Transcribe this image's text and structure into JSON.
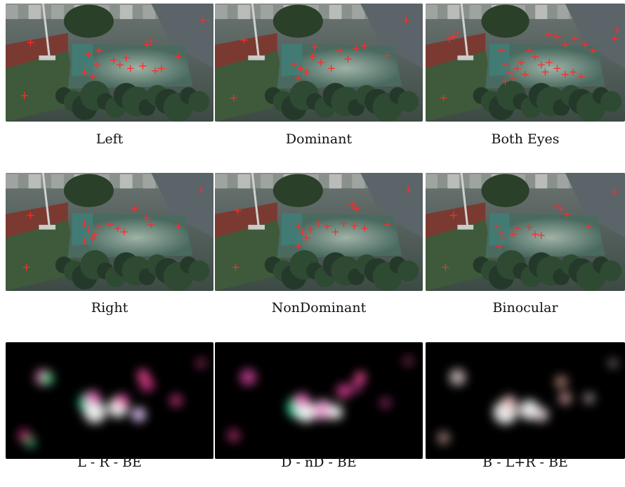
{
  "figure": {
    "panels": [
      {
        "caption": "Left",
        "kind": "photo",
        "fixations": [
          [
            0.12,
            0.33
          ],
          [
            0.09,
            0.78
          ],
          [
            0.4,
            0.43
          ],
          [
            0.45,
            0.4
          ],
          [
            0.52,
            0.48
          ],
          [
            0.55,
            0.52
          ],
          [
            0.58,
            0.46
          ],
          [
            0.6,
            0.55
          ],
          [
            0.66,
            0.53
          ],
          [
            0.68,
            0.35
          ],
          [
            0.7,
            0.32
          ],
          [
            0.75,
            0.55
          ],
          [
            0.83,
            0.45
          ],
          [
            0.95,
            0.14
          ],
          [
            0.38,
            0.58
          ],
          [
            0.42,
            0.62
          ],
          [
            0.44,
            0.52
          ],
          [
            0.72,
            0.57
          ]
        ]
      },
      {
        "caption": "Dominant",
        "kind": "photo",
        "fixations": [
          [
            0.14,
            0.31
          ],
          [
            0.09,
            0.8
          ],
          [
            0.38,
            0.52
          ],
          [
            0.41,
            0.55
          ],
          [
            0.44,
            0.58
          ],
          [
            0.47,
            0.45
          ],
          [
            0.51,
            0.5
          ],
          [
            0.56,
            0.55
          ],
          [
            0.6,
            0.4
          ],
          [
            0.64,
            0.47
          ],
          [
            0.68,
            0.38
          ],
          [
            0.72,
            0.36
          ],
          [
            0.83,
            0.44
          ],
          [
            0.92,
            0.14
          ],
          [
            0.48,
            0.37
          ],
          [
            0.4,
            0.63
          ]
        ]
      },
      {
        "caption": "Both Eyes",
        "kind": "photo",
        "fixations": [
          [
            0.14,
            0.28
          ],
          [
            0.16,
            0.24
          ],
          [
            0.12,
            0.3
          ],
          [
            0.09,
            0.8
          ],
          [
            0.38,
            0.4
          ],
          [
            0.4,
            0.52
          ],
          [
            0.42,
            0.58
          ],
          [
            0.44,
            0.63
          ],
          [
            0.46,
            0.55
          ],
          [
            0.48,
            0.5
          ],
          [
            0.5,
            0.6
          ],
          [
            0.55,
            0.45
          ],
          [
            0.58,
            0.52
          ],
          [
            0.6,
            0.58
          ],
          [
            0.62,
            0.5
          ],
          [
            0.66,
            0.55
          ],
          [
            0.7,
            0.6
          ],
          [
            0.74,
            0.58
          ],
          [
            0.78,
            0.62
          ],
          [
            0.62,
            0.26
          ],
          [
            0.66,
            0.28
          ],
          [
            0.7,
            0.35
          ],
          [
            0.75,
            0.3
          ],
          [
            0.8,
            0.35
          ],
          [
            0.84,
            0.4
          ],
          [
            0.95,
            0.3
          ],
          [
            0.96,
            0.22
          ],
          [
            0.4,
            0.66
          ],
          [
            0.52,
            0.4
          ]
        ]
      },
      {
        "caption": "Right",
        "kind": "photo",
        "fixations": [
          [
            0.12,
            0.36
          ],
          [
            0.1,
            0.8
          ],
          [
            0.38,
            0.43
          ],
          [
            0.4,
            0.48
          ],
          [
            0.43,
            0.52
          ],
          [
            0.45,
            0.46
          ],
          [
            0.38,
            0.58
          ],
          [
            0.5,
            0.44
          ],
          [
            0.54,
            0.47
          ],
          [
            0.57,
            0.5
          ],
          [
            0.62,
            0.3
          ],
          [
            0.68,
            0.38
          ],
          [
            0.7,
            0.44
          ],
          [
            0.83,
            0.45
          ],
          [
            0.94,
            0.14
          ],
          [
            0.42,
            0.56
          ]
        ]
      },
      {
        "caption": "NonDominant",
        "kind": "photo",
        "fixations": [
          [
            0.11,
            0.32
          ],
          [
            0.1,
            0.8
          ],
          [
            0.4,
            0.45
          ],
          [
            0.42,
            0.5
          ],
          [
            0.44,
            0.55
          ],
          [
            0.4,
            0.62
          ],
          [
            0.5,
            0.43
          ],
          [
            0.54,
            0.45
          ],
          [
            0.58,
            0.5
          ],
          [
            0.62,
            0.43
          ],
          [
            0.67,
            0.45
          ],
          [
            0.72,
            0.47
          ],
          [
            0.66,
            0.27
          ],
          [
            0.68,
            0.3
          ],
          [
            0.83,
            0.44
          ],
          [
            0.93,
            0.14
          ],
          [
            0.46,
            0.48
          ]
        ]
      },
      {
        "caption": "Binocular",
        "kind": "photo",
        "fixations": [
          [
            0.14,
            0.36
          ],
          [
            0.1,
            0.8
          ],
          [
            0.36,
            0.46
          ],
          [
            0.38,
            0.5
          ],
          [
            0.39,
            0.55
          ],
          [
            0.37,
            0.62
          ],
          [
            0.46,
            0.47
          ],
          [
            0.52,
            0.46
          ],
          [
            0.55,
            0.52
          ],
          [
            0.58,
            0.53
          ],
          [
            0.66,
            0.28
          ],
          [
            0.68,
            0.31
          ],
          [
            0.71,
            0.35
          ],
          [
            0.82,
            0.45
          ],
          [
            0.95,
            0.16
          ],
          [
            0.44,
            0.52
          ]
        ]
      },
      {
        "caption": "L - R - BE",
        "kind": "heatmap",
        "blobs": [
          [
            0.18,
            0.3,
            18,
            "#d15aa8"
          ],
          [
            0.2,
            0.31,
            14,
            "#4fd08a"
          ],
          [
            0.4,
            0.52,
            22,
            "#2ee8b0"
          ],
          [
            0.43,
            0.6,
            24,
            "#ffffff"
          ],
          [
            0.42,
            0.48,
            16,
            "#ff6bc8"
          ],
          [
            0.54,
            0.56,
            22,
            "#ffffff"
          ],
          [
            0.56,
            0.5,
            14,
            "#ff55b8"
          ],
          [
            0.64,
            0.62,
            16,
            "#e6c7ff"
          ],
          [
            0.68,
            0.36,
            16,
            "#c9307e"
          ],
          [
            0.66,
            0.28,
            12,
            "#ff4fa0"
          ],
          [
            0.82,
            0.5,
            14,
            "#b03070"
          ],
          [
            0.94,
            0.18,
            12,
            "#7a2450"
          ],
          [
            0.09,
            0.8,
            14,
            "#b03070"
          ],
          [
            0.12,
            0.86,
            12,
            "#2d9e64"
          ]
        ]
      },
      {
        "caption": "D - nD - BE",
        "kind": "heatmap",
        "blobs": [
          [
            0.16,
            0.3,
            18,
            "#c03a90"
          ],
          [
            0.4,
            0.56,
            24,
            "#2ee8b0"
          ],
          [
            0.44,
            0.6,
            22,
            "#ffffff"
          ],
          [
            0.42,
            0.5,
            16,
            "#ff6bc8"
          ],
          [
            0.52,
            0.58,
            22,
            "#ffb0e4"
          ],
          [
            0.58,
            0.6,
            16,
            "#ffffff"
          ],
          [
            0.62,
            0.42,
            16,
            "#d03a8e"
          ],
          [
            0.68,
            0.38,
            14,
            "#8a2a66"
          ],
          [
            0.7,
            0.3,
            12,
            "#ff4fa0"
          ],
          [
            0.82,
            0.52,
            12,
            "#8a2a66"
          ],
          [
            0.93,
            0.16,
            12,
            "#6a2246"
          ],
          [
            0.09,
            0.8,
            14,
            "#a02860"
          ]
        ]
      },
      {
        "caption": "B - L+R - BE",
        "kind": "heatmap",
        "blobs": [
          [
            0.16,
            0.3,
            18,
            "#c8b8b8"
          ],
          [
            0.4,
            0.6,
            26,
            "#ffffff"
          ],
          [
            0.42,
            0.52,
            16,
            "#f0c0c0"
          ],
          [
            0.52,
            0.58,
            22,
            "#ffffff"
          ],
          [
            0.58,
            0.62,
            16,
            "#e0d0d0"
          ],
          [
            0.68,
            0.34,
            14,
            "#b08070"
          ],
          [
            0.7,
            0.48,
            14,
            "#c09090"
          ],
          [
            0.82,
            0.48,
            12,
            "#a09090"
          ],
          [
            0.94,
            0.18,
            10,
            "#8a7a7a"
          ],
          [
            0.09,
            0.82,
            14,
            "#a08078"
          ]
        ]
      }
    ]
  }
}
